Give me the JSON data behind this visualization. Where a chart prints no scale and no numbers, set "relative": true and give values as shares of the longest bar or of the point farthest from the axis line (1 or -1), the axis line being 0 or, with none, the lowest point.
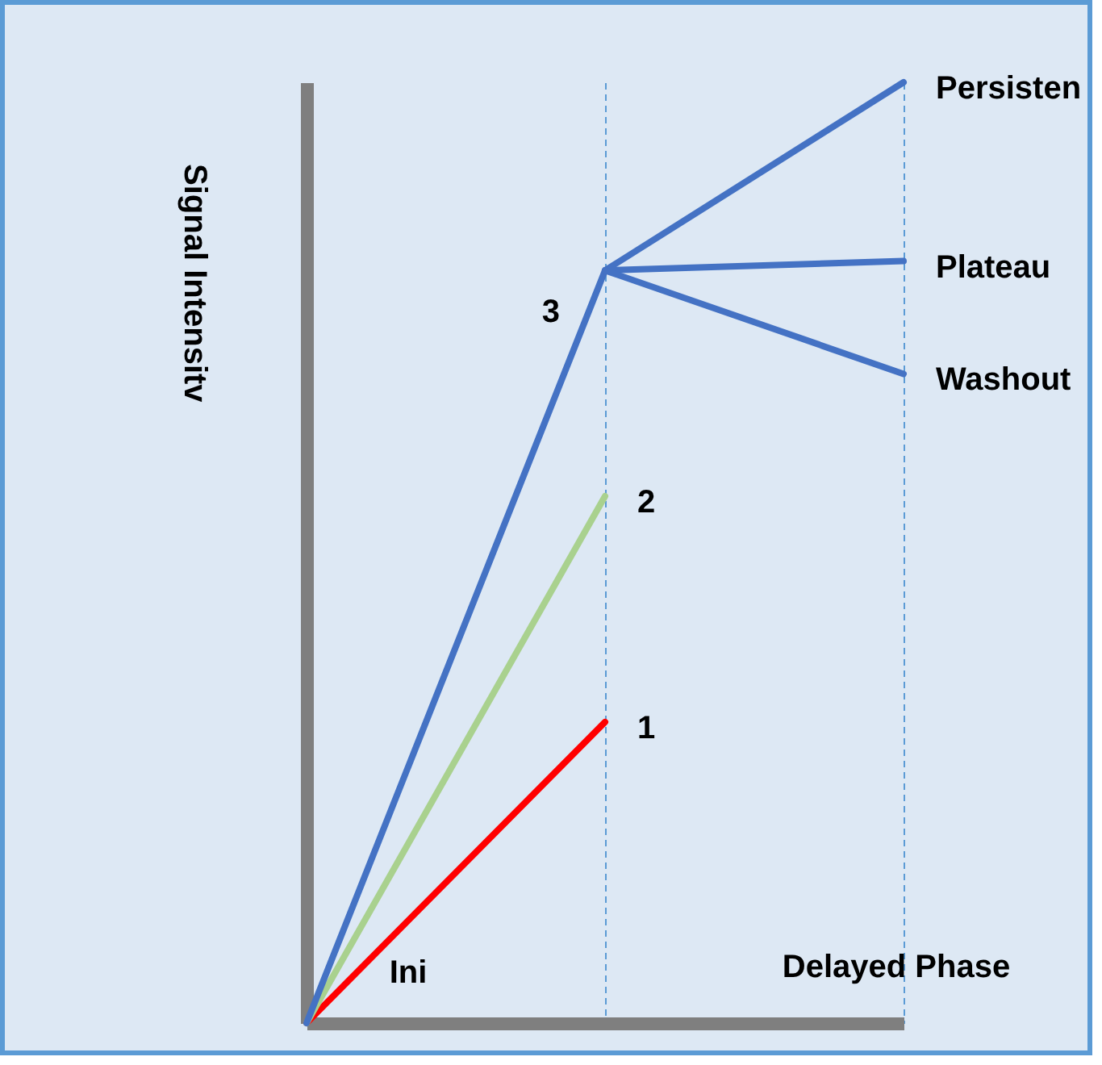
{
  "chart_data": {
    "type": "line",
    "relative": true,
    "xlabel": "Delayed Phase",
    "ylabel": "Signal Intensitv",
    "categories": [
      null,
      null,
      null
    ],
    "series": [
      {
        "name": "1",
        "color": "#ff0000",
        "values": [
          0,
          0.32,
          null
        ]
      },
      {
        "name": "2",
        "color": "#a9d18e",
        "values": [
          0,
          0.56,
          null
        ]
      },
      {
        "name": "3",
        "color": "#4472c4",
        "values": [
          0,
          0.8,
          null
        ]
      },
      {
        "name": "Persisten",
        "color": "#4472c4",
        "values": [
          null,
          0.8,
          1
        ]
      },
      {
        "name": "Plateau",
        "color": "#4472c4",
        "values": [
          null,
          0.8,
          0.81
        ]
      },
      {
        "name": "Washout",
        "color": "#4472c4",
        "values": [
          null,
          0.8,
          0.69
        ]
      }
    ],
    "annotations": [
      "Ini"
    ],
    "grid": "x",
    "legend": false,
    "marker": "none",
    "line_style": "solid"
  }
}
